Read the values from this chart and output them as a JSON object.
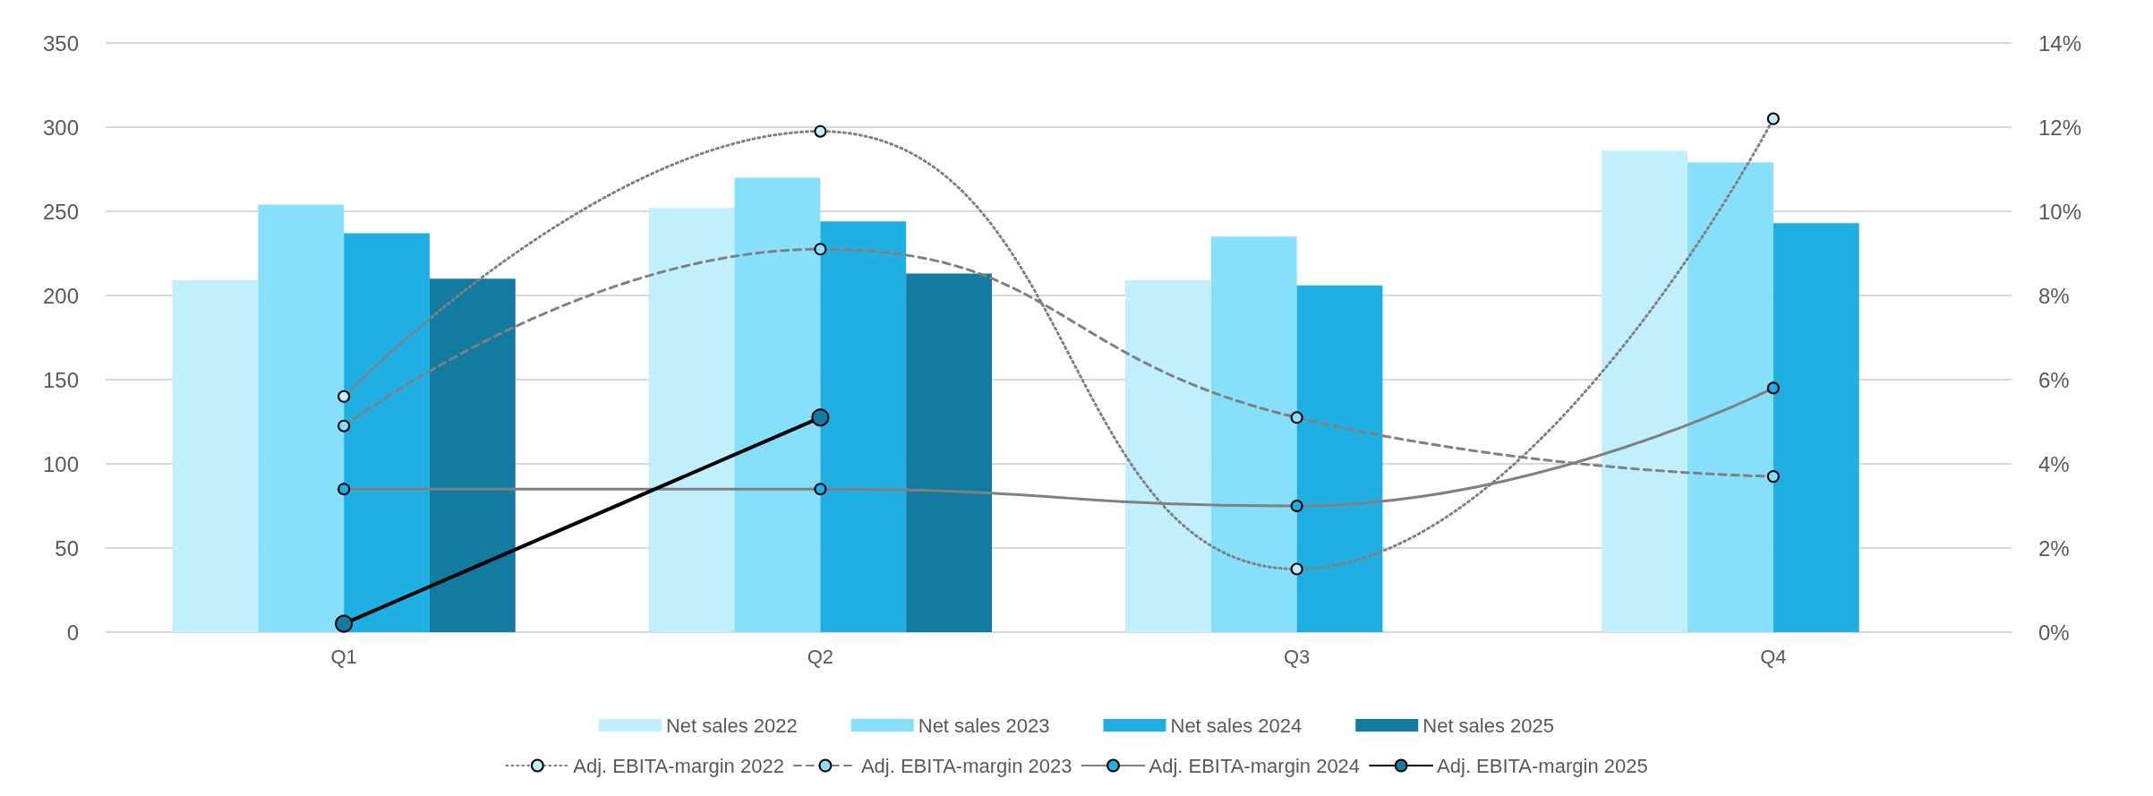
{
  "chart_data": {
    "type": "bar",
    "categories": [
      "Q1",
      "Q2",
      "Q3",
      "Q4"
    ],
    "series": [
      {
        "name": "Net sales 2022",
        "color": "#c1effd",
        "values": [
          209,
          252,
          209,
          286
        ]
      },
      {
        "name": "Net sales 2023",
        "color": "#86e0fc",
        "values": [
          254,
          270,
          235,
          279
        ]
      },
      {
        "name": "Net sales 2024",
        "color": "#20afe3",
        "values": [
          237,
          244,
          206,
          243
        ]
      },
      {
        "name": "Net sales 2025",
        "color": "#137aa0",
        "values": [
          210,
          213,
          null,
          null
        ]
      },
      {
        "name": "Adj. EBITA-margin 2022",
        "type": "line",
        "axis": "y2",
        "color": "#808080",
        "line_style": "dotted",
        "values": [
          5.6,
          11.9,
          1.5,
          12.2
        ]
      },
      {
        "name": "Adj. EBITA-margin 2023",
        "type": "line",
        "axis": "y2",
        "color": "#808080",
        "line_style": "dashed",
        "values": [
          4.9,
          9.1,
          5.1,
          3.7
        ]
      },
      {
        "name": "Adj. EBITA-margin 2024",
        "type": "line",
        "axis": "y2",
        "color": "#808080",
        "line_style": "solid",
        "values": [
          3.4,
          3.4,
          3.0,
          5.8
        ]
      },
      {
        "name": "Adj. EBITA-margin 2025",
        "type": "line",
        "axis": "y2",
        "color": "#000000",
        "line_style": "solid",
        "values": [
          0.2,
          5.1,
          null,
          null
        ]
      }
    ],
    "ylim": [
      0,
      350
    ],
    "yticks": [
      0,
      50,
      100,
      150,
      200,
      250,
      300,
      350
    ],
    "y2lim": [
      0,
      14
    ],
    "y2ticks": [
      {
        "value": 0,
        "label": "0%"
      },
      {
        "value": 2,
        "label": "2%"
      },
      {
        "value": 4,
        "label": "4%"
      },
      {
        "value": 6,
        "label": "6%"
      },
      {
        "value": 8,
        "label": "8%"
      },
      {
        "value": 10,
        "label": "10%"
      },
      {
        "value": 12,
        "label": "12%"
      },
      {
        "value": 14,
        "label": "14%"
      }
    ],
    "grid": "y",
    "legend": "bottom",
    "marker": "circle"
  }
}
